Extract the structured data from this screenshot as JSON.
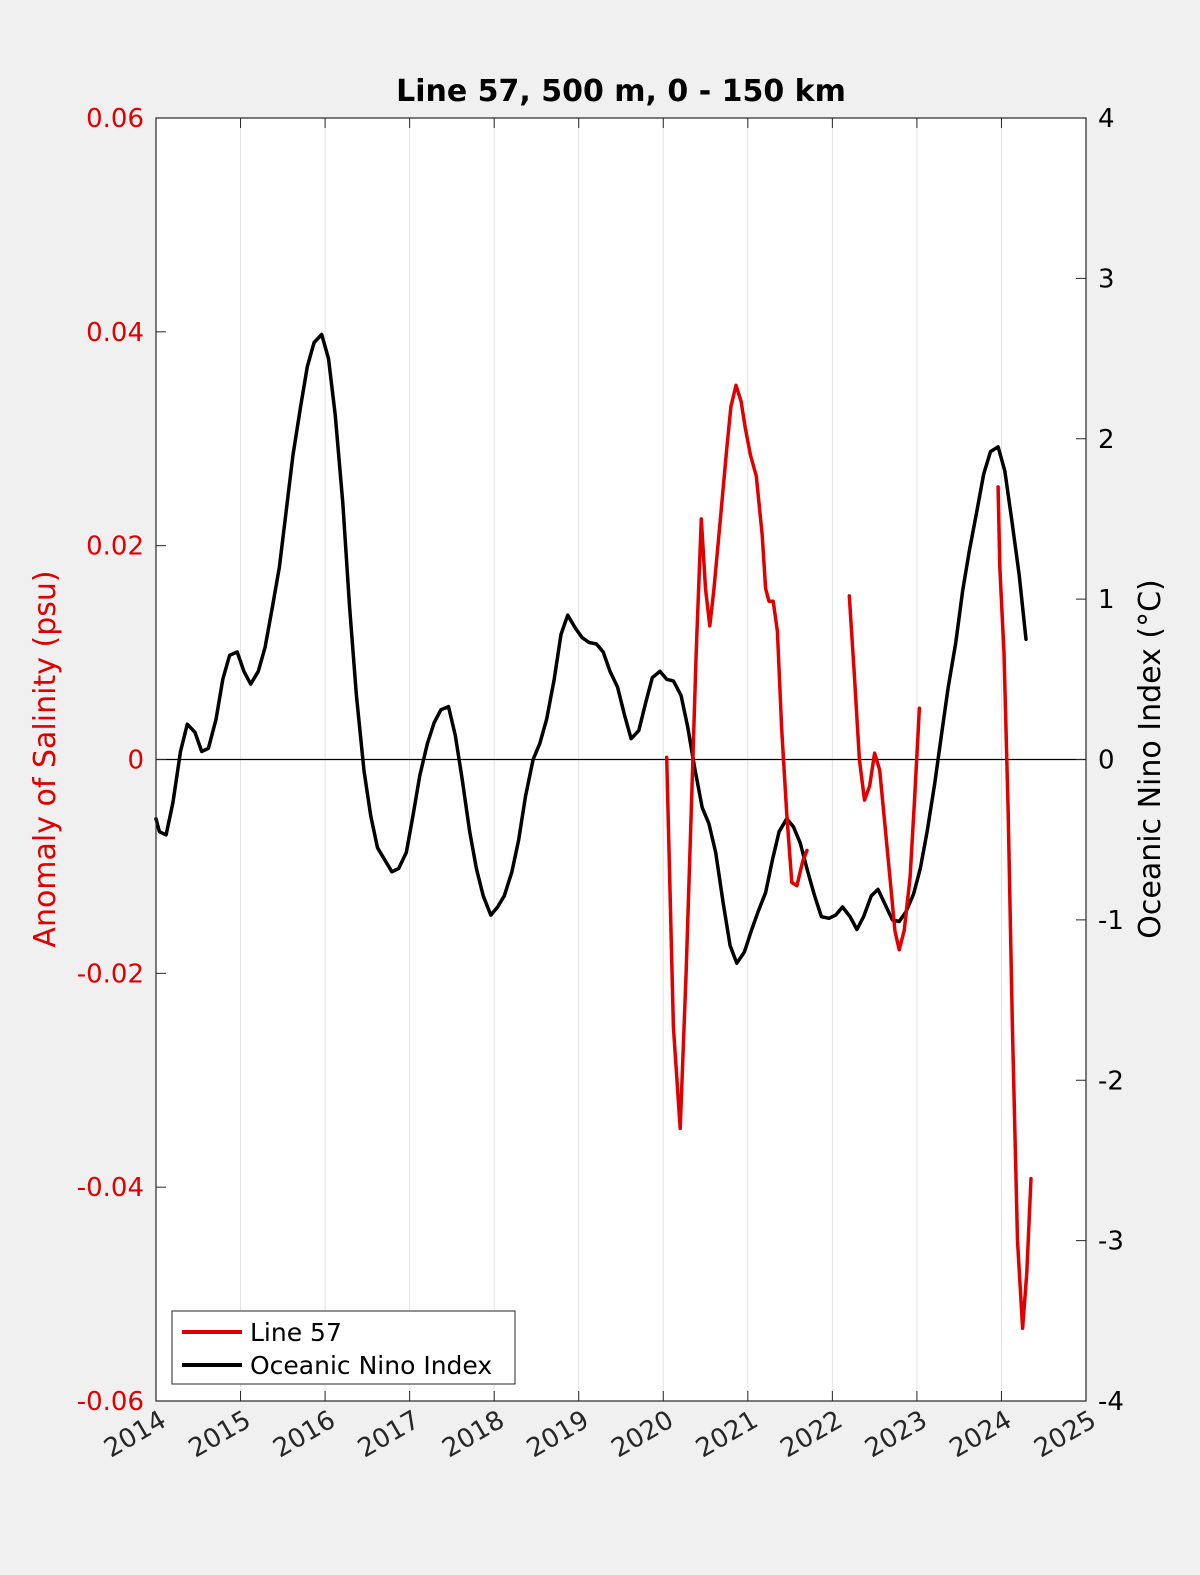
{
  "chart_data": {
    "type": "line",
    "title": "Line 57, 500 m, 0 - 150 km",
    "xlabel": "",
    "ylabel_left": "Anomaly of Salinity (psu)",
    "ylabel_right": "Oceanic Nino Index (°C)",
    "xlim": [
      2014,
      2025
    ],
    "ylim_left": [
      -0.06,
      0.06
    ],
    "ylim_right": [
      -4,
      4
    ],
    "x_ticks": [
      "2014",
      "2015",
      "2016",
      "2017",
      "2018",
      "2019",
      "2020",
      "2021",
      "2022",
      "2023",
      "2024",
      "2025"
    ],
    "y_ticks_left": [
      "0.06",
      "0.04",
      "0.02",
      "0",
      "-0.02",
      "-0.04",
      "-0.06"
    ],
    "y_ticks_right": [
      "4",
      "3",
      "2",
      "1",
      "0",
      "-1",
      "-2",
      "-3",
      "-4"
    ],
    "grid": "vertical",
    "zero_line": true,
    "legend_position": "bottom-left",
    "colors": {
      "salinity": "#e00000",
      "oni": "#000000",
      "left_axis": "#e00000",
      "right_axis": "#000000"
    },
    "series": [
      {
        "name": "Line 57",
        "axis": "left",
        "segments": [
          [
            [
              2020.04,
              0.0002
            ],
            [
              2020.12,
              -0.025
            ],
            [
              2020.2,
              -0.0345
            ],
            [
              2020.27,
              -0.02
            ],
            [
              2020.33,
              -0.005
            ],
            [
              2020.39,
              0.01
            ],
            [
              2020.45,
              0.0225
            ],
            [
              2020.5,
              0.016
            ],
            [
              2020.55,
              0.0125
            ],
            [
              2020.6,
              0.016
            ],
            [
              2020.67,
              0.022
            ],
            [
              2020.75,
              0.029
            ],
            [
              2020.8,
              0.033
            ],
            [
              2020.86,
              0.035
            ],
            [
              2020.92,
              0.0335
            ],
            [
              2020.97,
              0.031
            ],
            [
              2021.03,
              0.0285
            ],
            [
              2021.1,
              0.0265
            ],
            [
              2021.17,
              0.021
            ],
            [
              2021.21,
              0.016
            ],
            [
              2021.25,
              0.0148
            ],
            [
              2021.3,
              0.0148
            ],
            [
              2021.35,
              0.012
            ],
            [
              2021.4,
              0.003
            ],
            [
              2021.46,
              -0.005
            ],
            [
              2021.52,
              -0.0115
            ],
            [
              2021.58,
              -0.0118
            ],
            [
              2021.65,
              -0.0095
            ],
            [
              2021.7,
              -0.0085
            ]
          ],
          [
            [
              2022.2,
              0.0153
            ],
            [
              2022.26,
              0.008
            ],
            [
              2022.32,
              0.0
            ],
            [
              2022.38,
              -0.0038
            ],
            [
              2022.44,
              -0.0025
            ],
            [
              2022.5,
              0.0006
            ],
            [
              2022.56,
              -0.001
            ],
            [
              2022.62,
              -0.006
            ],
            [
              2022.68,
              -0.011
            ],
            [
              2022.74,
              -0.016
            ],
            [
              2022.79,
              -0.0178
            ],
            [
              2022.85,
              -0.016
            ],
            [
              2022.92,
              -0.011
            ],
            [
              2022.97,
              -0.004
            ],
            [
              2023.03,
              0.0048
            ]
          ],
          [
            [
              2023.96,
              0.0255
            ],
            [
              2023.98,
              0.018
            ],
            [
              2024.03,
              0.01
            ],
            [
              2024.08,
              -0.005
            ],
            [
              2024.13,
              -0.025
            ],
            [
              2024.19,
              -0.045
            ],
            [
              2024.25,
              -0.0532
            ],
            [
              2024.3,
              -0.048
            ],
            [
              2024.35,
              -0.0392
            ]
          ]
        ]
      },
      {
        "name": "Oceanic Nino Index",
        "axis": "right",
        "segments": [
          [
            [
              2014.0,
              -0.37
            ],
            [
              2014.04,
              -0.45
            ],
            [
              2014.12,
              -0.47
            ],
            [
              2014.2,
              -0.27
            ],
            [
              2014.29,
              0.05
            ],
            [
              2014.37,
              0.22
            ],
            [
              2014.46,
              0.17
            ],
            [
              2014.54,
              0.05
            ],
            [
              2014.62,
              0.07
            ],
            [
              2014.71,
              0.25
            ],
            [
              2014.79,
              0.5
            ],
            [
              2014.87,
              0.65
            ],
            [
              2014.96,
              0.67
            ],
            [
              2015.04,
              0.55
            ],
            [
              2015.12,
              0.47
            ],
            [
              2015.21,
              0.55
            ],
            [
              2015.29,
              0.7
            ],
            [
              2015.37,
              0.93
            ],
            [
              2015.46,
              1.2
            ],
            [
              2015.54,
              1.55
            ],
            [
              2015.62,
              1.9
            ],
            [
              2015.71,
              2.2
            ],
            [
              2015.79,
              2.45
            ],
            [
              2015.87,
              2.6
            ],
            [
              2015.96,
              2.65
            ],
            [
              2016.04,
              2.5
            ],
            [
              2016.12,
              2.15
            ],
            [
              2016.21,
              1.6
            ],
            [
              2016.29,
              0.95
            ],
            [
              2016.37,
              0.4
            ],
            [
              2016.46,
              -0.07
            ],
            [
              2016.54,
              -0.35
            ],
            [
              2016.62,
              -0.55
            ],
            [
              2016.71,
              -0.63
            ],
            [
              2016.79,
              -0.7
            ],
            [
              2016.87,
              -0.68
            ],
            [
              2016.96,
              -0.58
            ],
            [
              2017.04,
              -0.35
            ],
            [
              2017.12,
              -0.1
            ],
            [
              2017.21,
              0.1
            ],
            [
              2017.29,
              0.23
            ],
            [
              2017.37,
              0.31
            ],
            [
              2017.46,
              0.33
            ],
            [
              2017.54,
              0.15
            ],
            [
              2017.62,
              -0.12
            ],
            [
              2017.71,
              -0.45
            ],
            [
              2017.79,
              -0.68
            ],
            [
              2017.87,
              -0.85
            ],
            [
              2017.96,
              -0.97
            ],
            [
              2018.04,
              -0.92
            ],
            [
              2018.12,
              -0.85
            ],
            [
              2018.21,
              -0.7
            ],
            [
              2018.29,
              -0.5
            ],
            [
              2018.37,
              -0.23
            ],
            [
              2018.46,
              0.0
            ],
            [
              2018.54,
              0.1
            ],
            [
              2018.62,
              0.25
            ],
            [
              2018.71,
              0.5
            ],
            [
              2018.79,
              0.78
            ],
            [
              2018.87,
              0.9
            ],
            [
              2018.96,
              0.82
            ],
            [
              2019.04,
              0.76
            ],
            [
              2019.12,
              0.73
            ],
            [
              2019.21,
              0.72
            ],
            [
              2019.29,
              0.67
            ],
            [
              2019.37,
              0.55
            ],
            [
              2019.46,
              0.45
            ],
            [
              2019.54,
              0.28
            ],
            [
              2019.62,
              0.13
            ],
            [
              2019.71,
              0.18
            ],
            [
              2019.79,
              0.35
            ],
            [
              2019.87,
              0.51
            ],
            [
              2019.96,
              0.55
            ],
            [
              2020.04,
              0.5
            ],
            [
              2020.12,
              0.49
            ],
            [
              2020.21,
              0.4
            ],
            [
              2020.29,
              0.2
            ],
            [
              2020.37,
              -0.05
            ],
            [
              2020.46,
              -0.3
            ],
            [
              2020.54,
              -0.4
            ],
            [
              2020.62,
              -0.58
            ],
            [
              2020.71,
              -0.9
            ],
            [
              2020.79,
              -1.16
            ],
            [
              2020.87,
              -1.27
            ],
            [
              2020.96,
              -1.2
            ],
            [
              2021.04,
              -1.07
            ],
            [
              2021.12,
              -0.95
            ],
            [
              2021.21,
              -0.83
            ],
            [
              2021.29,
              -0.63
            ],
            [
              2021.37,
              -0.45
            ],
            [
              2021.46,
              -0.37
            ],
            [
              2021.54,
              -0.42
            ],
            [
              2021.62,
              -0.52
            ],
            [
              2021.71,
              -0.7
            ],
            [
              2021.79,
              -0.85
            ],
            [
              2021.87,
              -0.98
            ],
            [
              2021.96,
              -0.99
            ],
            [
              2022.04,
              -0.97
            ],
            [
              2022.12,
              -0.92
            ],
            [
              2022.21,
              -0.98
            ],
            [
              2022.29,
              -1.06
            ],
            [
              2022.37,
              -0.98
            ],
            [
              2022.46,
              -0.85
            ],
            [
              2022.54,
              -0.81
            ],
            [
              2022.62,
              -0.9
            ],
            [
              2022.71,
              -1.0
            ],
            [
              2022.79,
              -1.01
            ],
            [
              2022.87,
              -0.95
            ],
            [
              2022.96,
              -0.84
            ],
            [
              2023.04,
              -0.68
            ],
            [
              2023.12,
              -0.45
            ],
            [
              2023.21,
              -0.15
            ],
            [
              2023.29,
              0.15
            ],
            [
              2023.37,
              0.45
            ],
            [
              2023.46,
              0.73
            ],
            [
              2023.54,
              1.05
            ],
            [
              2023.62,
              1.3
            ],
            [
              2023.71,
              1.55
            ],
            [
              2023.79,
              1.78
            ],
            [
              2023.87,
              1.92
            ],
            [
              2023.96,
              1.95
            ],
            [
              2024.04,
              1.8
            ],
            [
              2024.12,
              1.5
            ],
            [
              2024.21,
              1.15
            ],
            [
              2024.29,
              0.75
            ]
          ]
        ]
      }
    ]
  }
}
